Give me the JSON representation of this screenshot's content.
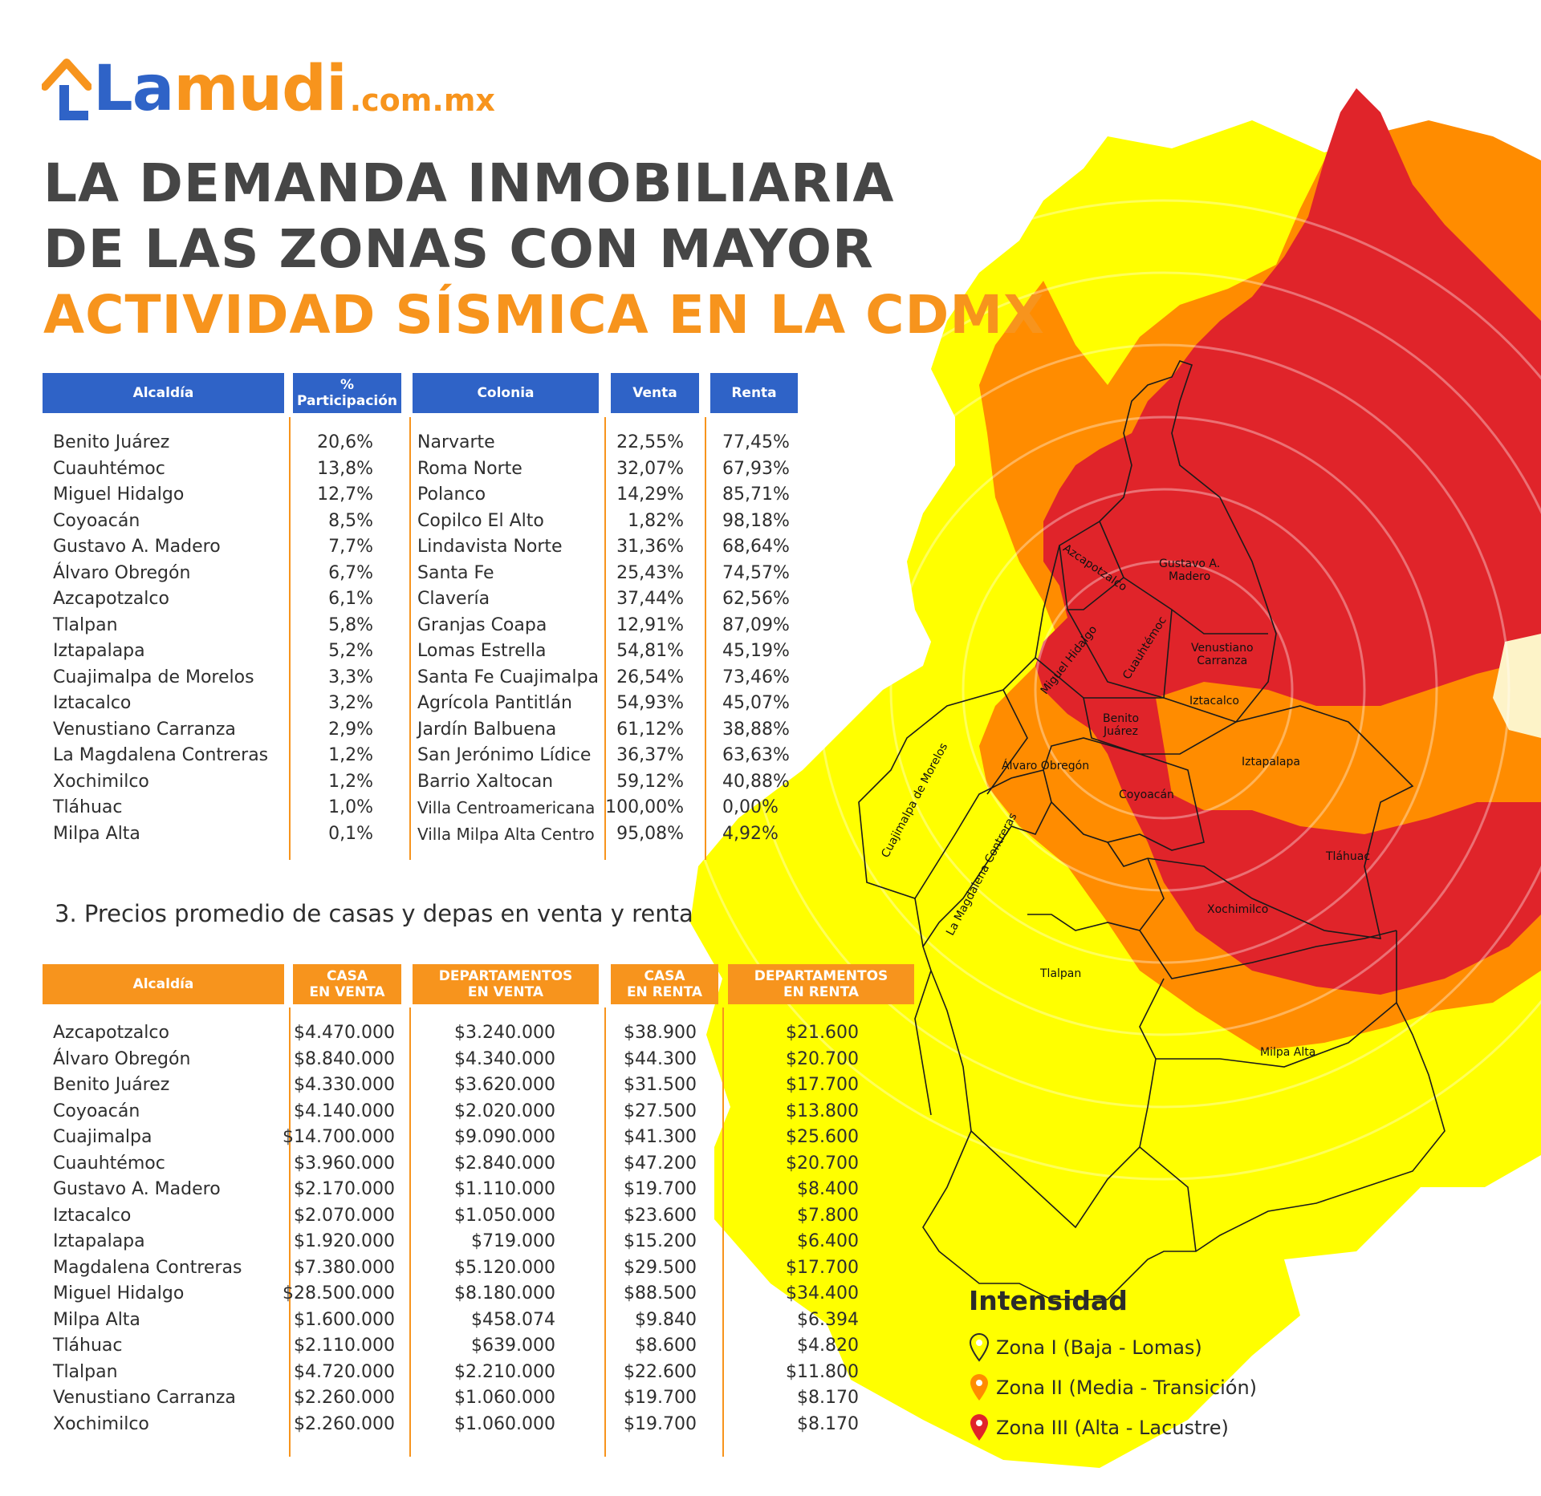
{
  "logo": {
    "brand_left": "La",
    "brand_right": "mudi",
    "domain": ".com.mx"
  },
  "title": {
    "line1": "LA DEMANDA INMOBILIARIA",
    "line2": "DE LAS ZONAS  CON MAYOR",
    "line3": "ACTIVIDAD SÍSMICA EN LA CDMX"
  },
  "table1": {
    "headers": {
      "alcaldia": "Alcaldía",
      "participacion_1": "%",
      "participacion_2": "Participación",
      "colonia": "Colonia",
      "venta": "Venta",
      "renta": "Renta"
    },
    "rows": [
      {
        "alcaldia": "Benito Juárez",
        "participacion": "20,6%",
        "colonia": "Narvarte",
        "venta": "22,55%",
        "renta": "77,45%"
      },
      {
        "alcaldia": "Cuauhtémoc",
        "participacion": "13,8%",
        "colonia": "Roma Norte",
        "venta": "32,07%",
        "renta": "67,93%"
      },
      {
        "alcaldia": "Miguel Hidalgo",
        "participacion": "12,7%",
        "colonia": "Polanco",
        "venta": "14,29%",
        "renta": "85,71%"
      },
      {
        "alcaldia": "Coyoacán",
        "participacion": "8,5%",
        "colonia": "Copilco El Alto",
        "venta": "1,82%",
        "renta": "98,18%"
      },
      {
        "alcaldia": "Gustavo A. Madero",
        "participacion": "7,7%",
        "colonia": "Lindavista Norte",
        "venta": "31,36%",
        "renta": "68,64%"
      },
      {
        "alcaldia": "Álvaro Obregón",
        "participacion": "6,7%",
        "colonia": "Santa Fe",
        "venta": "25,43%",
        "renta": "74,57%"
      },
      {
        "alcaldia": "Azcapotzalco",
        "participacion": "6,1%",
        "colonia": "Clavería",
        "venta": "37,44%",
        "renta": "62,56%"
      },
      {
        "alcaldia": "Tlalpan",
        "participacion": "5,8%",
        "colonia": "Granjas Coapa",
        "venta": "12,91%",
        "renta": "87,09%"
      },
      {
        "alcaldia": "Iztapalapa",
        "participacion": "5,2%",
        "colonia": "Lomas Estrella",
        "venta": "54,81%",
        "renta": "45,19%"
      },
      {
        "alcaldia": "Cuajimalpa de Morelos",
        "participacion": "3,3%",
        "colonia": "Santa Fe Cuajimalpa",
        "venta": "26,54%",
        "renta": "73,46%"
      },
      {
        "alcaldia": "Iztacalco",
        "participacion": "3,2%",
        "colonia": "Agrícola Pantitlán",
        "venta": "54,93%",
        "renta": "45,07%"
      },
      {
        "alcaldia": "Venustiano Carranza",
        "participacion": "2,9%",
        "colonia": "Jardín Balbuena",
        "venta": "61,12%",
        "renta": "38,88%"
      },
      {
        "alcaldia": "La Magdalena Contreras",
        "participacion": "1,2%",
        "colonia": "San Jerónimo Lídice",
        "venta": "36,37%",
        "renta": "63,63%"
      },
      {
        "alcaldia": "Xochimilco",
        "participacion": "1,2%",
        "colonia": "Barrio Xaltocan",
        "venta": "59,12%",
        "renta": "40,88%"
      },
      {
        "alcaldia": "Tláhuac",
        "participacion": "1,0%",
        "colonia": "Villa Centroamericana",
        "venta": "100,00%",
        "renta": "0,00%"
      },
      {
        "alcaldia": "Milpa Alta",
        "participacion": "0,1%",
        "colonia": "Villa Milpa Alta Centro",
        "venta": "95,08%",
        "renta": "4,92%"
      }
    ]
  },
  "subtitle": "3. Precios promedio de casas y depas en venta y renta",
  "table2": {
    "headers": {
      "alcaldia": "Alcaldía",
      "casa_venta_1": "CASA",
      "casa_venta_2": "EN VENTA",
      "depto_venta_1": "DEPARTAMENTOS",
      "depto_venta_2": "EN VENTA",
      "casa_renta_1": "CASA",
      "casa_renta_2": "EN RENTA",
      "depto_renta_1": "DEPARTAMENTOS",
      "depto_renta_2": "EN RENTA"
    },
    "rows": [
      {
        "alcaldia": "Azcapotzalco",
        "casa_venta": "$4.470.000",
        "depto_venta": "$3.240.000",
        "casa_renta": "$38.900",
        "depto_renta": "$21.600"
      },
      {
        "alcaldia": "Álvaro Obregón",
        "casa_venta": "$8.840.000",
        "depto_venta": "$4.340.000",
        "casa_renta": "$44.300",
        "depto_renta": "$20.700"
      },
      {
        "alcaldia": "Benito Juárez",
        "casa_venta": "$4.330.000",
        "depto_venta": "$3.620.000",
        "casa_renta": "$31.500",
        "depto_renta": "$17.700"
      },
      {
        "alcaldia": "Coyoacán",
        "casa_venta": "$4.140.000",
        "depto_venta": "$2.020.000",
        "casa_renta": "$27.500",
        "depto_renta": "$13.800"
      },
      {
        "alcaldia": "Cuajimalpa",
        "casa_venta": "$14.700.000",
        "depto_venta": "$9.090.000",
        "casa_renta": "$41.300",
        "depto_renta": "$25.600"
      },
      {
        "alcaldia": "Cuauhtémoc",
        "casa_venta": "$3.960.000",
        "depto_venta": "$2.840.000",
        "casa_renta": "$47.200",
        "depto_renta": "$20.700"
      },
      {
        "alcaldia": "Gustavo A. Madero",
        "casa_venta": "$2.170.000",
        "depto_venta": "$1.110.000",
        "casa_renta": "$19.700",
        "depto_renta": "$8.400"
      },
      {
        "alcaldia": "Iztacalco",
        "casa_venta": "$2.070.000",
        "depto_venta": "$1.050.000",
        "casa_renta": "$23.600",
        "depto_renta": "$7.800"
      },
      {
        "alcaldia": "Iztapalapa",
        "casa_venta": "$1.920.000",
        "depto_venta": "$719.000",
        "casa_renta": "$15.200",
        "depto_renta": "$6.400"
      },
      {
        "alcaldia": "Magdalena Contreras",
        "casa_venta": "$7.380.000",
        "depto_venta": "$5.120.000",
        "casa_renta": "$29.500",
        "depto_renta": "$17.700"
      },
      {
        "alcaldia": "Miguel Hidalgo",
        "casa_venta": "$28.500.000",
        "depto_venta": "$8.180.000",
        "casa_renta": "$88.500",
        "depto_renta": "$34.400"
      },
      {
        "alcaldia": "Milpa Alta",
        "casa_venta": "$1.600.000",
        "depto_venta": "$458.074",
        "casa_renta": "$9.840",
        "depto_renta": "$6.394"
      },
      {
        "alcaldia": "Tláhuac",
        "casa_venta": "$2.110.000",
        "depto_venta": "$639.000",
        "casa_renta": "$8.600",
        "depto_renta": "$4.820"
      },
      {
        "alcaldia": "Tlalpan",
        "casa_venta": "$4.720.000",
        "depto_venta": "$2.210.000",
        "casa_renta": "$22.600",
        "depto_renta": "$11.800"
      },
      {
        "alcaldia": "Venustiano Carranza",
        "casa_venta": "$2.260.000",
        "depto_venta": "$1.060.000",
        "casa_renta": "$19.700",
        "depto_renta": "$8.170"
      },
      {
        "alcaldia": "Xochimilco",
        "casa_venta": "$2.260.000",
        "depto_venta": "$1.060.000",
        "casa_renta": "$19.700",
        "depto_renta": "$8.170"
      }
    ]
  },
  "map": {
    "district_labels": {
      "azcapotzalco": "Azcapotzalco",
      "gam_1": "Gustavo A.",
      "gam_2": "Madero",
      "cuauhtemoc": "Cuauhtémoc",
      "vc_1": "Venustiano",
      "vc_2": "Carranza",
      "miguel_hidalgo": "Miguel Hidalgo",
      "iztacalco": "Iztacalco",
      "bj_1": "Benito",
      "bj_2": "Juárez",
      "alvaro_obregon": "Álvaro Obregón",
      "iztapalapa": "Iztapalapa",
      "cuajimalpa": "Cuajimalpa de Morelos",
      "coyoacan": "Coyoacán",
      "magdalena": "La Magdalena Contreras",
      "tlahuac": "Tláhuac",
      "xochimilco": "Xochimilco",
      "tlalpan": "Tlalpan",
      "milpa_alta": "Milpa Alta"
    },
    "zone_colors": {
      "zona1": "#ffff00",
      "zona2": "#ff8c00",
      "zona3": "#e0242a"
    }
  },
  "legend": {
    "title": "Intensidad",
    "items": [
      {
        "label": "Zona I (Baja - Lomas)",
        "color": "#ffff00",
        "icon": "yellow-pin-icon"
      },
      {
        "label": "Zona II (Media - Transición)",
        "color": "#ff8c00",
        "icon": "orange-pin-icon"
      },
      {
        "label": "Zona III (Alta - Lacustre)",
        "color": "#e0242a",
        "icon": "red-pin-icon"
      }
    ]
  }
}
